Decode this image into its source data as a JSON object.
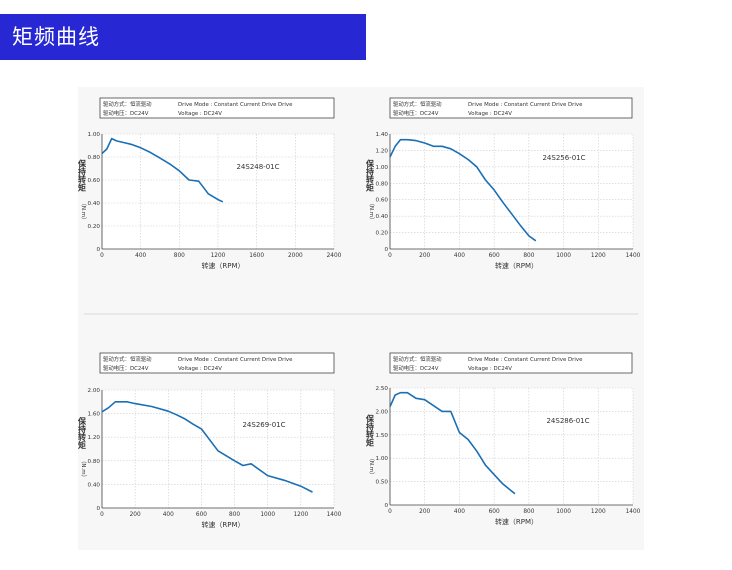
{
  "header": {
    "title": "矩频曲线"
  },
  "colors": {
    "banner": "#2727d4",
    "curve": "#1a6fb5",
    "grid": "#cccccc"
  },
  "chart_data": [
    {
      "type": "line",
      "model": "24S248-01C",
      "info": {
        "mode_cn": "驱动方式：恒流驱动",
        "mode_en": "Drive  Mode : Constant  Current  Drive  Drive",
        "volt_cn": "驱动电压：DC24V",
        "volt_en": "Voltage : DC24V"
      },
      "xlabel": "转速（RPM）",
      "ylabel": "保持转矩",
      "yunit": "（N.m）",
      "xlim": [
        0,
        2400
      ],
      "ylim": [
        0,
        1.0
      ],
      "xticks": [
        "0",
        "400",
        "800",
        "1200",
        "1600",
        "2000",
        "2400"
      ],
      "yticks": [
        "0",
        "0.20",
        "0.40",
        "0.60",
        "0.80",
        "1.00"
      ],
      "grid": true,
      "x": [
        0,
        50,
        100,
        150,
        200,
        300,
        400,
        500,
        600,
        700,
        800,
        900,
        1000,
        1100,
        1200,
        1250
      ],
      "y": [
        0.83,
        0.87,
        0.96,
        0.94,
        0.93,
        0.91,
        0.88,
        0.84,
        0.79,
        0.74,
        0.68,
        0.6,
        0.59,
        0.48,
        0.43,
        0.41
      ]
    },
    {
      "type": "line",
      "model": "24S256-01C",
      "info": {
        "mode_cn": "驱动方式：恒流驱动",
        "mode_en": "Drive  Mode : Constant  Current  Drive  Drive",
        "volt_cn": "驱动电压：DC24V",
        "volt_en": "Voltage : DC24V"
      },
      "xlabel": "转速（RPM）",
      "ylabel": "保持转矩",
      "yunit": "（N.m）",
      "xlim": [
        0,
        1400
      ],
      "ylim": [
        0,
        1.4
      ],
      "xticks": [
        "0",
        "200",
        "400",
        "600",
        "800",
        "1000",
        "1200",
        "1400"
      ],
      "yticks": [
        "0",
        "0.20",
        "0.40",
        "0.60",
        "0.80",
        "1.00",
        "1.20",
        "1.40"
      ],
      "grid": true,
      "x": [
        0,
        30,
        60,
        100,
        150,
        200,
        250,
        300,
        350,
        400,
        450,
        500,
        550,
        600,
        650,
        700,
        750,
        800,
        840
      ],
      "y": [
        1.12,
        1.25,
        1.33,
        1.33,
        1.32,
        1.29,
        1.25,
        1.25,
        1.22,
        1.16,
        1.09,
        1.0,
        0.84,
        0.72,
        0.57,
        0.43,
        0.29,
        0.16,
        0.1
      ]
    },
    {
      "type": "line",
      "model": "24S269-01C",
      "info": {
        "mode_cn": "驱动方式：恒流驱动",
        "mode_en": "Drive  Mode : Constant  Current  Drive  Drive",
        "volt_cn": "驱动电压：DC24V",
        "volt_en": "Voltage : DC24V"
      },
      "xlabel": "转速（RPM）",
      "ylabel": "保持转矩",
      "yunit": "（N.m）",
      "xlim": [
        0,
        1400
      ],
      "ylim": [
        0,
        2.0
      ],
      "xticks": [
        "0",
        "200",
        "400",
        "600",
        "800",
        "1000",
        "1200",
        "1400"
      ],
      "yticks": [
        "0",
        "0.40",
        "0.80",
        "1.20",
        "1.60",
        "2.00"
      ],
      "grid": true,
      "x": [
        0,
        40,
        80,
        150,
        200,
        300,
        400,
        450,
        500,
        550,
        600,
        700,
        800,
        850,
        900,
        1000,
        1100,
        1200,
        1270
      ],
      "y": [
        1.63,
        1.7,
        1.8,
        1.8,
        1.77,
        1.72,
        1.64,
        1.58,
        1.51,
        1.42,
        1.34,
        0.97,
        0.8,
        0.72,
        0.75,
        0.55,
        0.47,
        0.37,
        0.27
      ]
    },
    {
      "type": "line",
      "model": "24S286-01C",
      "info": {
        "mode_cn": "驱动方式：恒流驱动",
        "mode_en": "Drive  Mode : Constant  Current  Drive  Drive",
        "volt_cn": "驱动电压：DC24V",
        "volt_en": "Voltage : DC24V"
      },
      "xlabel": "转速（RPM）",
      "ylabel": "保持转矩",
      "yunit": "（N.m）",
      "xlim": [
        0,
        1400
      ],
      "ylim": [
        0,
        2.5
      ],
      "xticks": [
        "0",
        "200",
        "400",
        "600",
        "800",
        "1000",
        "1200",
        "1400"
      ],
      "yticks": [
        "0",
        "0.50",
        "1.00",
        "1.50",
        "2.00",
        "2.50"
      ],
      "grid": true,
      "x": [
        0,
        30,
        60,
        100,
        150,
        200,
        300,
        350,
        400,
        450,
        500,
        550,
        600,
        650,
        700,
        720
      ],
      "y": [
        2.1,
        2.35,
        2.4,
        2.4,
        2.28,
        2.25,
        2.0,
        2.0,
        1.55,
        1.4,
        1.15,
        0.85,
        0.65,
        0.45,
        0.3,
        0.24
      ]
    }
  ]
}
